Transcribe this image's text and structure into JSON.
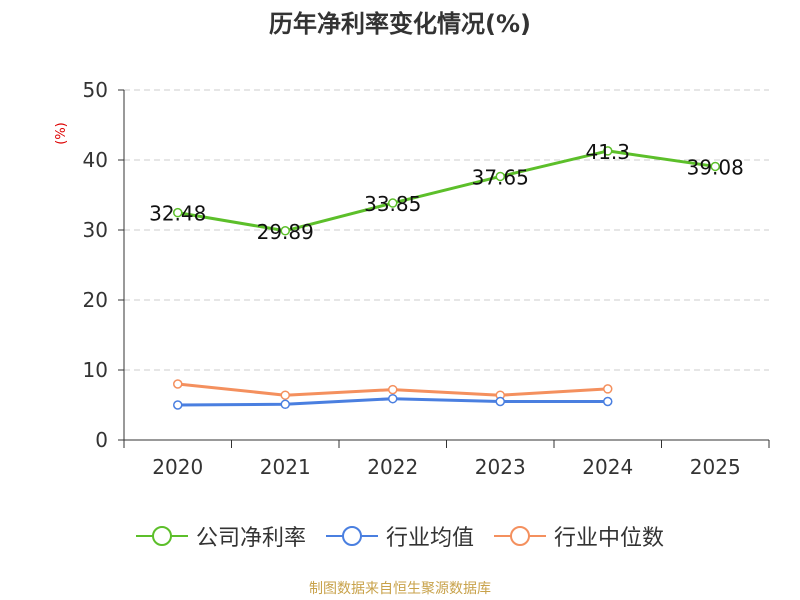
{
  "title": "历年净利率变化情况(%)",
  "unit_label": "(%)",
  "footer": "制图数据来自恒生聚源数据库",
  "chart_data": {
    "type": "line",
    "categories": [
      "2020",
      "2021",
      "2022",
      "2023",
      "2024",
      "2025"
    ],
    "ylim": [
      0,
      50
    ],
    "yticks": [
      0,
      10,
      20,
      30,
      40,
      50
    ],
    "grid": true,
    "legend_position": "bottom",
    "series": [
      {
        "name": "公司净利率",
        "color": "#5cbf2a",
        "values": [
          32.48,
          29.89,
          33.85,
          37.65,
          41.3,
          39.08
        ],
        "labels": [
          "32.48",
          "29.89",
          "33.85",
          "37.65",
          "41.3",
          "39.08"
        ]
      },
      {
        "name": "行业均值",
        "color": "#4a7fe0",
        "values": [
          5.0,
          5.1,
          5.9,
          5.5,
          5.5,
          null
        ]
      },
      {
        "name": "行业中位数",
        "color": "#f4905e",
        "values": [
          8.0,
          6.4,
          7.2,
          6.4,
          7.3,
          null
        ]
      }
    ]
  }
}
